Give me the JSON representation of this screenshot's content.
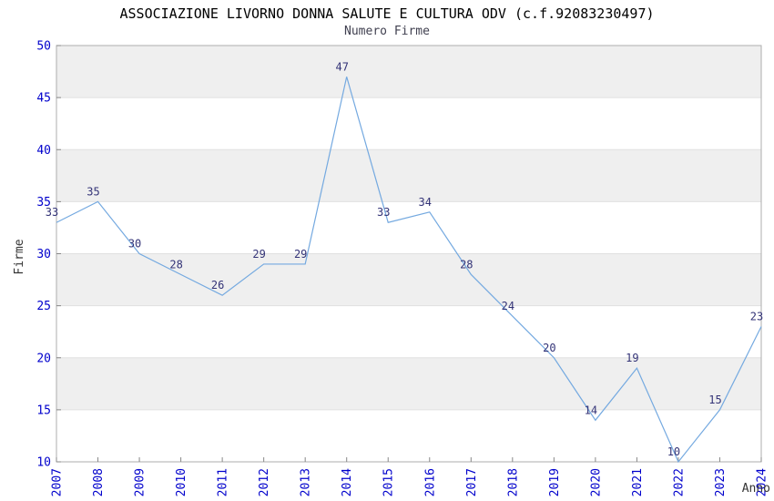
{
  "chart": {
    "title": "ASSOCIAZIONE LIVORNO DONNA SALUTE E CULTURA ODV (c.f.92083230497)",
    "subtitle": "Numero Firme"
  },
  "chart_data": {
    "type": "line",
    "title": "ASSOCIAZIONE LIVORNO DONNA SALUTE E CULTURA ODV (c.f.92083230497)",
    "subtitle": "Numero Firme",
    "xlabel": "Anno",
    "ylabel": "Firme",
    "x": [
      2007,
      2008,
      2009,
      2010,
      2011,
      2012,
      2013,
      2014,
      2015,
      2016,
      2017,
      2018,
      2019,
      2020,
      2021,
      2022,
      2023,
      2024
    ],
    "values": [
      33,
      35,
      30,
      28,
      26,
      29,
      29,
      47,
      33,
      34,
      28,
      24,
      20,
      14,
      19,
      10,
      15,
      23
    ],
    "point_labels": [
      "33",
      "35",
      "30",
      "28",
      "26",
      "29",
      "29",
      "47",
      "33",
      "34",
      "28",
      "24",
      "20",
      "14",
      "19",
      "10",
      "15",
      "23"
    ],
    "ylim": [
      10,
      50
    ],
    "ytick_step": 5,
    "yticks": [
      10,
      15,
      20,
      25,
      30,
      35,
      40,
      45,
      50
    ],
    "grid": true,
    "legend": false,
    "alternating_bands": true,
    "colors": {
      "line": "#74A9E0",
      "tick_labels": "#0000CC",
      "point_labels": "#333377",
      "band": "#EFEFEF",
      "gridline": "#E0E0E0",
      "border": "#ADADAD",
      "tick_mark": "#888888",
      "title": "#000000",
      "subtitle": "#404050",
      "axis_title": "#333333"
    }
  }
}
